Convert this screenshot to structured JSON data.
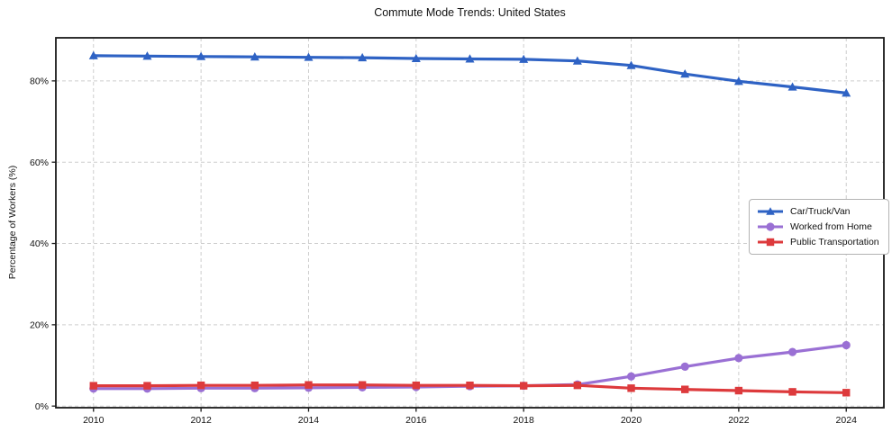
{
  "chart_data": {
    "type": "line",
    "title": "Commute Mode Trends: United States",
    "xlabel": "",
    "ylabel": "Percentage of Workers (%)",
    "x": [
      2010,
      2011,
      2012,
      2013,
      2014,
      2015,
      2016,
      2017,
      2018,
      2019,
      2020,
      2021,
      2022,
      2023,
      2024
    ],
    "series": [
      {
        "name": "Car/Truck/Van",
        "color": "#2e62c4",
        "marker": "triangle",
        "values": [
          86.2,
          86.1,
          86.0,
          85.9,
          85.8,
          85.7,
          85.5,
          85.4,
          85.3,
          84.9,
          83.8,
          81.7,
          79.9,
          78.5,
          77.0
        ]
      },
      {
        "name": "Worked from Home",
        "color": "#9a70d4",
        "marker": "circle",
        "values": [
          4.3,
          4.3,
          4.4,
          4.4,
          4.5,
          4.6,
          4.7,
          4.9,
          5.0,
          5.3,
          7.3,
          9.7,
          11.8,
          13.3,
          15.0
        ]
      },
      {
        "name": "Public Transportation",
        "color": "#dd3a3c",
        "marker": "square",
        "values": [
          5.0,
          5.0,
          5.1,
          5.1,
          5.2,
          5.2,
          5.1,
          5.1,
          5.0,
          5.1,
          4.4,
          4.1,
          3.8,
          3.5,
          3.3
        ]
      }
    ],
    "xlim": [
      2009.3,
      2024.7
    ],
    "ylim": [
      -0.4,
      90.6
    ],
    "xticks": [
      2010,
      2012,
      2014,
      2016,
      2018,
      2020,
      2022,
      2024
    ],
    "yticks": [
      0,
      20,
      40,
      60,
      80
    ],
    "ytick_suffix": "%",
    "grid": true,
    "grid_style": "dashed",
    "legend_position": "center-right"
  },
  "colors": {
    "background": "#ffffff",
    "grid": "#cdcdcd",
    "spine": "#1a1a1a",
    "tick_text": "#111111",
    "legend_border": "#b3b3b3"
  }
}
